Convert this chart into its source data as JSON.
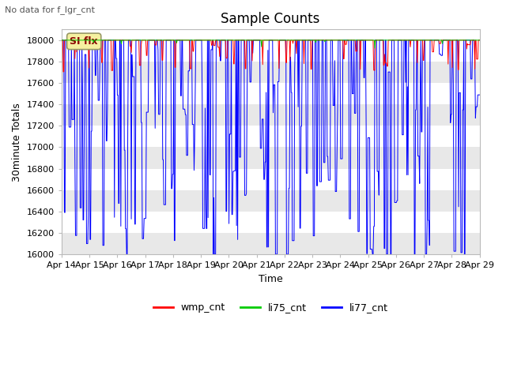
{
  "title": "Sample Counts",
  "ylabel": "30minute Totals",
  "xlabel": "Time",
  "top_left_text": "No data for f_lgr_cnt",
  "annotation_text": "SI flx",
  "ylim": [
    16000,
    18100
  ],
  "yticks": [
    16000,
    16200,
    16400,
    16600,
    16800,
    17000,
    17200,
    17400,
    17600,
    17800,
    18000
  ],
  "date_labels": [
    "Apr 14",
    "Apr 15",
    "Apr 16",
    "Apr 17",
    "Apr 18",
    "Apr 19",
    "Apr 20",
    "Apr 21",
    "Apr 22",
    "Apr 23",
    "Apr 24",
    "Apr 25",
    "Apr 26",
    "Apr 27",
    "Apr 28",
    "Apr 29"
  ],
  "n_days": 15,
  "n_per_day": 48,
  "baseline": 18000,
  "fig_bg": "#ffffff",
  "plot_bg": "#ffffff",
  "colors": {
    "wmp_cnt": "#ff0000",
    "li75_cnt": "#00cc00",
    "li77_cnt": "#0000ff"
  },
  "legend_entries": [
    "wmp_cnt",
    "li75_cnt",
    "li77_cnt"
  ],
  "title_fontsize": 12,
  "axis_fontsize": 9,
  "tick_fontsize": 8
}
